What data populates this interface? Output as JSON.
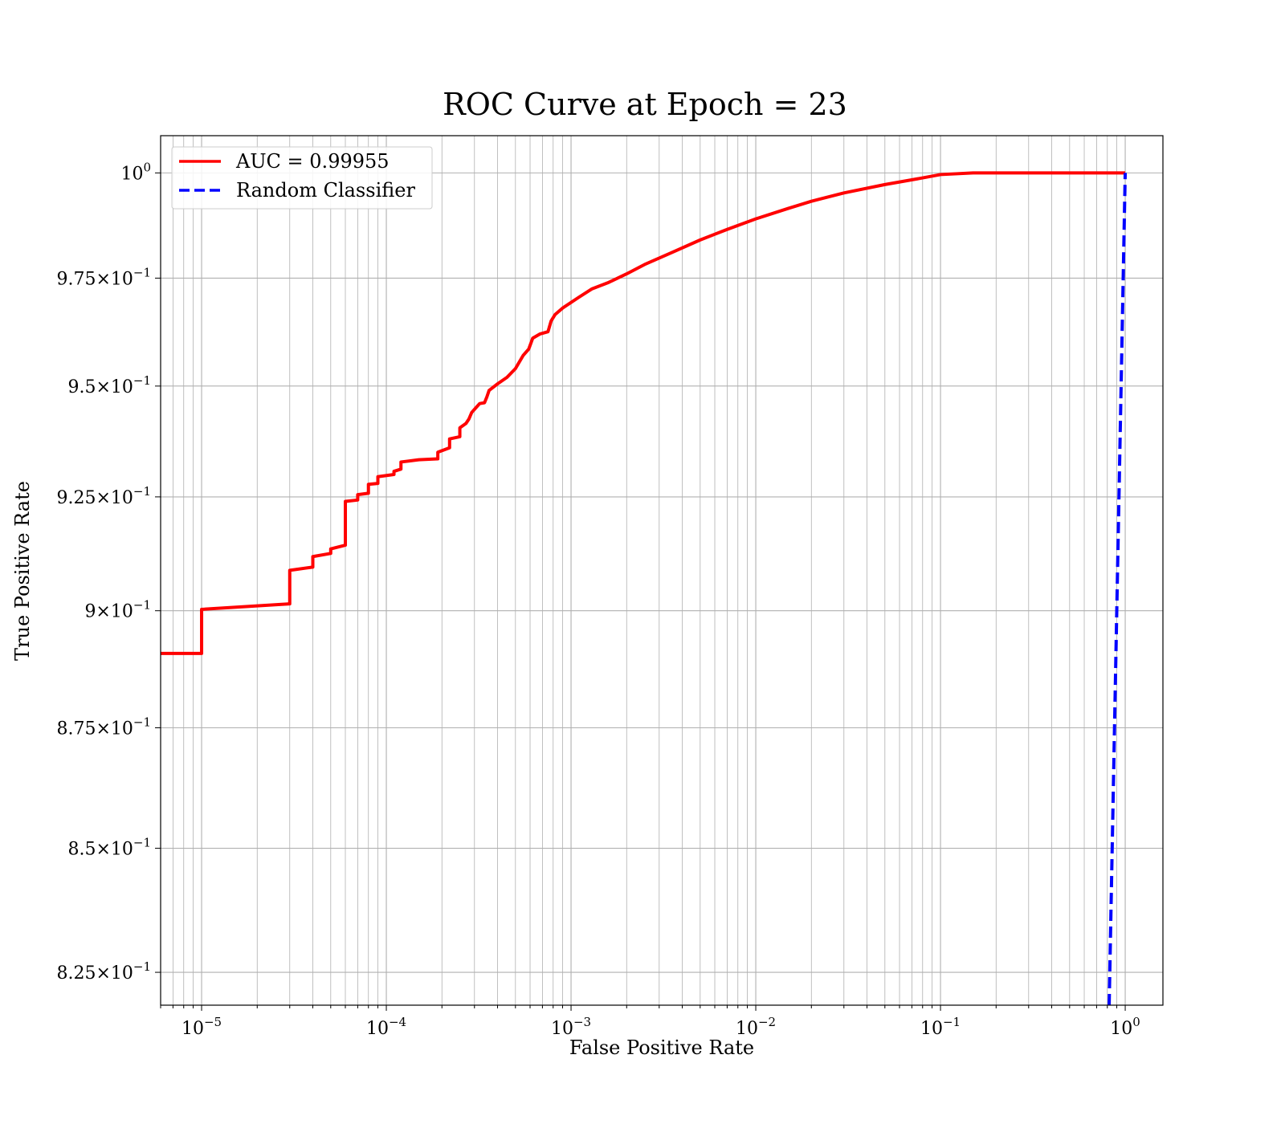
{
  "chart_data": {
    "type": "line",
    "title": "ROC Curve at Epoch = 23",
    "xlabel": "False Positive Rate",
    "ylabel": "True Positive Rate",
    "xscale": "log",
    "yscale": "log",
    "xlim": [
      6e-06,
      1.6
    ],
    "ylim": [
      0.8185,
      1.009
    ],
    "grid": true,
    "legend_position": "upper-left",
    "x_ticks": [
      {
        "value": 1e-05,
        "base": "10",
        "exp": "−5"
      },
      {
        "value": 0.0001,
        "base": "10",
        "exp": "−4"
      },
      {
        "value": 0.001,
        "base": "10",
        "exp": "−3"
      },
      {
        "value": 0.01,
        "base": "10",
        "exp": "−2"
      },
      {
        "value": 0.1,
        "base": "10",
        "exp": "−1"
      },
      {
        "value": 1,
        "base": "10",
        "exp": "0"
      }
    ],
    "y_ticks": [
      {
        "value": 1.0,
        "mant": "",
        "base": "10",
        "exp": "0"
      },
      {
        "value": 0.975,
        "mant": "9.75",
        "base": "10",
        "exp": "−1"
      },
      {
        "value": 0.95,
        "mant": "9.5",
        "base": "10",
        "exp": "−1"
      },
      {
        "value": 0.925,
        "mant": "9.25",
        "base": "10",
        "exp": "−1"
      },
      {
        "value": 0.9,
        "mant": "9",
        "base": "10",
        "exp": "−1"
      },
      {
        "value": 0.875,
        "mant": "8.75",
        "base": "10",
        "exp": "−1"
      },
      {
        "value": 0.85,
        "mant": "8.5",
        "base": "10",
        "exp": "−1"
      },
      {
        "value": 0.825,
        "mant": "8.25",
        "base": "10",
        "exp": "−1"
      }
    ],
    "series": [
      {
        "name": "AUC = 0.99955",
        "color": "#ff0000",
        "style": "solid",
        "points": [
          [
            6e-06,
            0.8908
          ],
          [
            1e-05,
            0.8908
          ],
          [
            1e-05,
            0.9003
          ],
          [
            3e-05,
            0.9015
          ],
          [
            3e-05,
            0.9088
          ],
          [
            4e-05,
            0.9095
          ],
          [
            4e-05,
            0.9118
          ],
          [
            5e-05,
            0.9125
          ],
          [
            5e-05,
            0.9135
          ],
          [
            6e-05,
            0.9143
          ],
          [
            6e-05,
            0.924
          ],
          [
            7e-05,
            0.9243
          ],
          [
            7e-05,
            0.9255
          ],
          [
            8e-05,
            0.9258
          ],
          [
            8e-05,
            0.9278
          ],
          [
            9e-05,
            0.928
          ],
          [
            9e-05,
            0.9295
          ],
          [
            0.00011,
            0.93
          ],
          [
            0.00011,
            0.9307
          ],
          [
            0.00012,
            0.9312
          ],
          [
            0.00012,
            0.9328
          ],
          [
            0.00015,
            0.9333
          ],
          [
            0.00019,
            0.9335
          ],
          [
            0.00019,
            0.935
          ],
          [
            0.00022,
            0.936
          ],
          [
            0.00022,
            0.938
          ],
          [
            0.00025,
            0.9385
          ],
          [
            0.00025,
            0.9405
          ],
          [
            0.00027,
            0.9415
          ],
          [
            0.00028,
            0.9425
          ],
          [
            0.00029,
            0.944
          ],
          [
            0.00032,
            0.946
          ],
          [
            0.00034,
            0.9462
          ],
          [
            0.00035,
            0.9475
          ],
          [
            0.00036,
            0.949
          ],
          [
            0.0004,
            0.9505
          ],
          [
            0.00045,
            0.952
          ],
          [
            0.0005,
            0.954
          ],
          [
            0.00055,
            0.957
          ],
          [
            0.00059,
            0.9585
          ],
          [
            0.00062,
            0.961
          ],
          [
            0.00068,
            0.962
          ],
          [
            0.00075,
            0.9625
          ],
          [
            0.00078,
            0.965
          ],
          [
            0.00082,
            0.9665
          ],
          [
            0.0009,
            0.968
          ],
          [
            0.0011,
            0.9705
          ],
          [
            0.0013,
            0.9725
          ],
          [
            0.0016,
            0.974
          ],
          [
            0.002,
            0.976
          ],
          [
            0.0025,
            0.9782
          ],
          [
            0.0035,
            0.981
          ],
          [
            0.005,
            0.984
          ],
          [
            0.007,
            0.9865
          ],
          [
            0.01,
            0.989
          ],
          [
            0.015,
            0.9915
          ],
          [
            0.02,
            0.9932
          ],
          [
            0.03,
            0.9952
          ],
          [
            0.05,
            0.9972
          ],
          [
            0.08,
            0.9988
          ],
          [
            0.1,
            0.9996
          ],
          [
            0.15,
            1.0
          ],
          [
            1.0,
            1.0
          ]
        ]
      },
      {
        "name": "Random Classifier",
        "color": "#0000ff",
        "style": "dashed",
        "points": [
          [
            0.8185,
            0.8185
          ],
          [
            1.0,
            1.0
          ]
        ]
      }
    ]
  }
}
